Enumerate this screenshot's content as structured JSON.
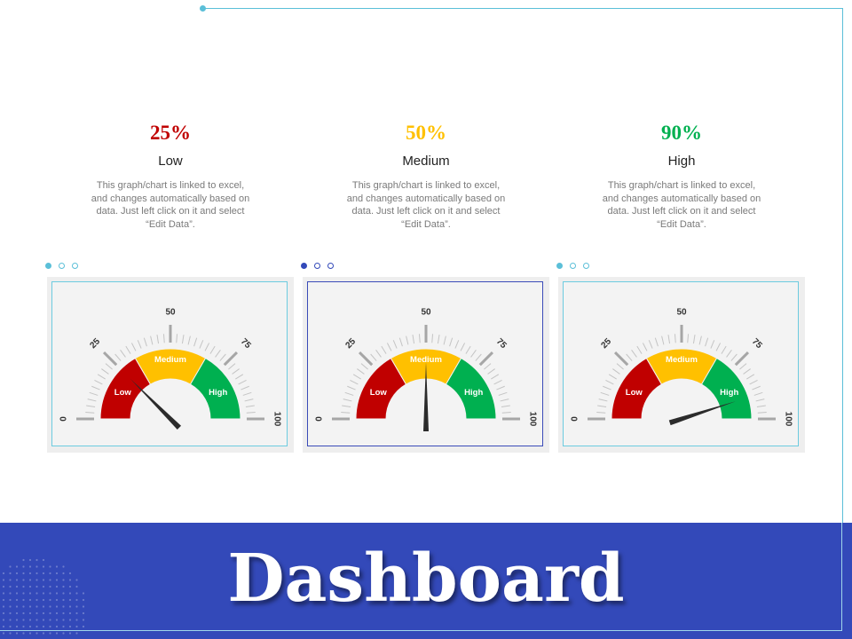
{
  "page": {
    "title": "Dashboard"
  },
  "colors": {
    "low": "#c00000",
    "medium": "#ffc000",
    "high": "#00b050",
    "banner": "#3349b9",
    "accent": "#5bbfd8"
  },
  "chart_data": [
    {
      "type": "gauge",
      "value": 25,
      "value_label": "25%",
      "level": "Low",
      "range": [
        0,
        100
      ],
      "ticks": [
        "0",
        "25",
        "50",
        "75",
        "100"
      ],
      "bands": [
        {
          "label": "Low",
          "from": 0,
          "to": 33.3
        },
        {
          "label": "Medium",
          "from": 33.3,
          "to": 66.7
        },
        {
          "label": "High",
          "from": 66.7,
          "to": 100
        }
      ],
      "description": "This graph/chart is linked to excel, and changes automatically based on data. Just left click on it and select “Edit Data”."
    },
    {
      "type": "gauge",
      "value": 50,
      "value_label": "50%",
      "level": "Medium",
      "range": [
        0,
        100
      ],
      "ticks": [
        "0",
        "25",
        "50",
        "75",
        "100"
      ],
      "bands": [
        {
          "label": "Low",
          "from": 0,
          "to": 33.3
        },
        {
          "label": "Medium",
          "from": 33.3,
          "to": 66.7
        },
        {
          "label": "High",
          "from": 66.7,
          "to": 100
        }
      ],
      "description": "This graph/chart is linked to excel, and changes automatically based on data. Just left click on it and select “Edit Data”."
    },
    {
      "type": "gauge",
      "value": 90,
      "value_label": "90%",
      "level": "High",
      "range": [
        0,
        100
      ],
      "ticks": [
        "0",
        "25",
        "50",
        "75",
        "100"
      ],
      "bands": [
        {
          "label": "Low",
          "from": 0,
          "to": 33.3
        },
        {
          "label": "Medium",
          "from": 33.3,
          "to": 66.7
        },
        {
          "label": "High",
          "from": 66.7,
          "to": 100
        }
      ],
      "description": "This graph/chart is linked to excel, and changes automatically based on data. Just left click on it and select “Edit Data”."
    }
  ]
}
